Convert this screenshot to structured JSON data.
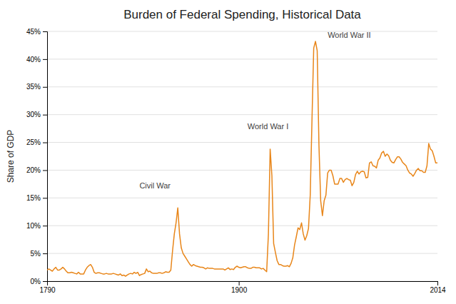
{
  "chart_data": {
    "type": "line",
    "title": "Burden of Federal Spending, Historical Data",
    "ylabel": "Share of GDP",
    "color": "#E8861A",
    "grid": true,
    "xlim": [
      1790,
      2014
    ],
    "xticks": [
      1790,
      1900,
      2014
    ],
    "ylim": [
      0,
      0.45
    ],
    "yticks": [
      {
        "value": 0,
        "label": "0%"
      },
      {
        "value": 0.05,
        "label": "5%"
      },
      {
        "value": 0.1,
        "label": "10%"
      },
      {
        "value": 0.15,
        "label": "15%"
      },
      {
        "value": 0.2,
        "label": "20%"
      },
      {
        "value": 0.25,
        "label": "25%"
      },
      {
        "value": 0.3,
        "label": "30%"
      },
      {
        "value": 0.35,
        "label": "35%"
      },
      {
        "value": 0.4,
        "label": "40%"
      },
      {
        "value": 0.45,
        "label": "45%"
      }
    ],
    "annotations": [
      {
        "text": "Civil War",
        "x": 1843,
        "y": 0.163
      },
      {
        "text": "World War I",
        "x": 1905,
        "y": 0.27
      },
      {
        "text": "World War II",
        "x": 1951,
        "y": 0.435
      }
    ],
    "x": [
      1790,
      1791,
      1792,
      1793,
      1794,
      1795,
      1796,
      1797,
      1798,
      1799,
      1800,
      1801,
      1802,
      1803,
      1804,
      1805,
      1806,
      1807,
      1808,
      1809,
      1810,
      1811,
      1812,
      1813,
      1814,
      1815,
      1816,
      1817,
      1818,
      1819,
      1820,
      1821,
      1822,
      1823,
      1824,
      1825,
      1826,
      1827,
      1828,
      1829,
      1830,
      1831,
      1832,
      1833,
      1834,
      1835,
      1836,
      1837,
      1838,
      1839,
      1840,
      1841,
      1842,
      1843,
      1844,
      1845,
      1846,
      1847,
      1848,
      1849,
      1850,
      1851,
      1852,
      1853,
      1854,
      1855,
      1856,
      1857,
      1858,
      1859,
      1860,
      1861,
      1862,
      1863,
      1864,
      1865,
      1866,
      1867,
      1868,
      1869,
      1870,
      1871,
      1872,
      1873,
      1874,
      1875,
      1876,
      1877,
      1878,
      1879,
      1880,
      1881,
      1882,
      1883,
      1884,
      1885,
      1886,
      1887,
      1888,
      1889,
      1890,
      1891,
      1892,
      1893,
      1894,
      1895,
      1896,
      1897,
      1898,
      1899,
      1900,
      1901,
      1902,
      1903,
      1904,
      1905,
      1906,
      1907,
      1908,
      1909,
      1910,
      1911,
      1912,
      1913,
      1914,
      1915,
      1916,
      1917,
      1918,
      1919,
      1920,
      1921,
      1922,
      1923,
      1924,
      1925,
      1926,
      1927,
      1928,
      1929,
      1930,
      1931,
      1932,
      1933,
      1934,
      1935,
      1936,
      1937,
      1938,
      1939,
      1940,
      1941,
      1942,
      1943,
      1944,
      1945,
      1946,
      1947,
      1948,
      1949,
      1950,
      1951,
      1952,
      1953,
      1954,
      1955,
      1956,
      1957,
      1958,
      1959,
      1960,
      1961,
      1962,
      1963,
      1964,
      1965,
      1966,
      1967,
      1968,
      1969,
      1970,
      1971,
      1972,
      1973,
      1974,
      1975,
      1976,
      1977,
      1978,
      1979,
      1980,
      1981,
      1982,
      1983,
      1984,
      1985,
      1986,
      1987,
      1988,
      1989,
      1990,
      1991,
      1992,
      1993,
      1994,
      1995,
      1996,
      1997,
      1998,
      1999,
      2000,
      2001,
      2002,
      2003,
      2004,
      2005,
      2006,
      2007,
      2008,
      2009,
      2010,
      2011,
      2012,
      2013,
      2014
    ],
    "values": [
      0.02,
      0.022,
      0.02,
      0.018,
      0.022,
      0.025,
      0.02,
      0.02,
      0.022,
      0.025,
      0.022,
      0.018,
      0.015,
      0.015,
      0.016,
      0.015,
      0.014,
      0.013,
      0.016,
      0.013,
      0.013,
      0.013,
      0.02,
      0.025,
      0.028,
      0.03,
      0.025,
      0.016,
      0.014,
      0.015,
      0.015,
      0.014,
      0.013,
      0.013,
      0.014,
      0.013,
      0.013,
      0.013,
      0.014,
      0.013,
      0.012,
      0.011,
      0.013,
      0.01,
      0.011,
      0.009,
      0.011,
      0.013,
      0.014,
      0.013,
      0.016,
      0.014,
      0.016,
      0.01,
      0.012,
      0.013,
      0.014,
      0.022,
      0.017,
      0.018,
      0.015,
      0.014,
      0.014,
      0.014,
      0.015,
      0.015,
      0.014,
      0.015,
      0.017,
      0.016,
      0.016,
      0.02,
      0.055,
      0.085,
      0.105,
      0.132,
      0.085,
      0.06,
      0.05,
      0.045,
      0.04,
      0.035,
      0.03,
      0.027,
      0.03,
      0.028,
      0.027,
      0.026,
      0.025,
      0.025,
      0.024,
      0.022,
      0.024,
      0.023,
      0.023,
      0.023,
      0.022,
      0.022,
      0.022,
      0.022,
      0.022,
      0.022,
      0.02,
      0.022,
      0.024,
      0.021,
      0.022,
      0.021,
      0.025,
      0.027,
      0.025,
      0.024,
      0.025,
      0.026,
      0.026,
      0.024,
      0.023,
      0.023,
      0.025,
      0.025,
      0.024,
      0.024,
      0.024,
      0.022,
      0.023,
      0.02,
      0.017,
      0.085,
      0.238,
      0.19,
      0.068,
      0.052,
      0.037,
      0.03,
      0.03,
      0.028,
      0.027,
      0.027,
      0.028,
      0.026,
      0.032,
      0.042,
      0.065,
      0.08,
      0.096,
      0.093,
      0.105,
      0.085,
      0.074,
      0.082,
      0.095,
      0.155,
      0.29,
      0.42,
      0.432,
      0.415,
      0.245,
      0.145,
      0.118,
      0.145,
      0.155,
      0.195,
      0.2,
      0.2,
      0.19,
      0.175,
      0.175,
      0.175,
      0.185,
      0.185,
      0.178,
      0.183,
      0.185,
      0.183,
      0.182,
      0.172,
      0.178,
      0.192,
      0.198,
      0.193,
      0.197,
      0.198,
      0.197,
      0.186,
      0.187,
      0.213,
      0.215,
      0.208,
      0.207,
      0.204,
      0.218,
      0.222,
      0.231,
      0.234,
      0.225,
      0.229,
      0.226,
      0.218,
      0.214,
      0.213,
      0.219,
      0.224,
      0.224,
      0.22,
      0.214,
      0.211,
      0.208,
      0.2,
      0.195,
      0.193,
      0.189,
      0.194,
      0.2,
      0.203,
      0.199,
      0.199,
      0.196,
      0.196,
      0.208,
      0.248,
      0.238,
      0.235,
      0.225,
      0.213,
      0.213
    ]
  }
}
